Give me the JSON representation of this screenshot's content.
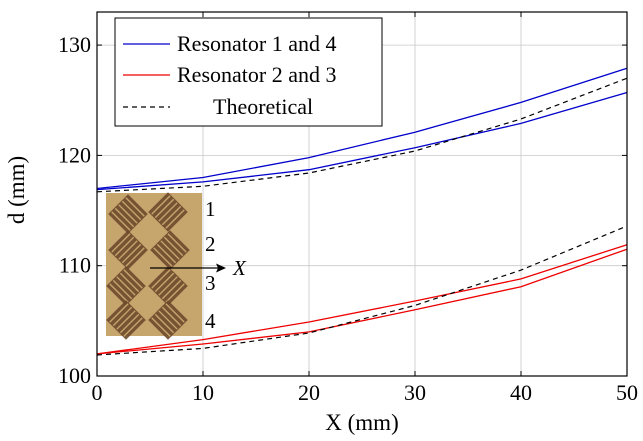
{
  "chart_data": {
    "type": "line",
    "xlabel": "X (mm)",
    "ylabel": "d (mm)",
    "xlim": [
      0,
      50
    ],
    "ylim": [
      100,
      133
    ],
    "xticks": [
      0,
      10,
      20,
      30,
      40,
      50
    ],
    "yticks": [
      100,
      110,
      120,
      130
    ],
    "x_tick_labels": [
      "0",
      "10",
      "20",
      "30",
      "40",
      "50"
    ],
    "y_tick_labels": [
      "100",
      "110",
      "120",
      "130"
    ],
    "grid": true,
    "legend_position": "top-left",
    "x": [
      0,
      10,
      20,
      30,
      40,
      50
    ],
    "series": [
      {
        "name": "Resonator 1 and 4",
        "legend": true,
        "color": "#0000cc",
        "dash": "solid",
        "values": [
          117.0,
          118.0,
          119.8,
          122.1,
          124.8,
          127.9
        ]
      },
      {
        "name": "",
        "legend": false,
        "color": "#0000cc",
        "dash": "solid",
        "values": [
          116.9,
          117.6,
          118.7,
          120.7,
          122.9,
          125.7
        ]
      },
      {
        "name": "Resonator 2 and 3",
        "legend": true,
        "color": "#ee0000",
        "dash": "solid",
        "values": [
          102.0,
          103.3,
          104.9,
          106.8,
          108.8,
          111.9
        ]
      },
      {
        "name": "",
        "legend": false,
        "color": "#ee0000",
        "dash": "solid",
        "values": [
          102.0,
          102.9,
          104.0,
          106.0,
          108.1,
          111.5
        ]
      },
      {
        "name": "Theoretical",
        "legend": true,
        "color": "#000000",
        "dash": "dashed",
        "values": [
          116.7,
          117.2,
          118.4,
          120.4,
          123.3,
          127.0
        ]
      },
      {
        "name": "",
        "legend": false,
        "color": "#000000",
        "dash": "dashed",
        "values": [
          101.9,
          102.5,
          103.9,
          106.4,
          109.6,
          113.6
        ]
      }
    ],
    "inset": {
      "labels": [
        "1",
        "2",
        "3",
        "4"
      ],
      "arrow_label": "X"
    }
  },
  "colors": {
    "photo_background": "#c7a66e",
    "photo_pattern": "#6b4a2c"
  }
}
